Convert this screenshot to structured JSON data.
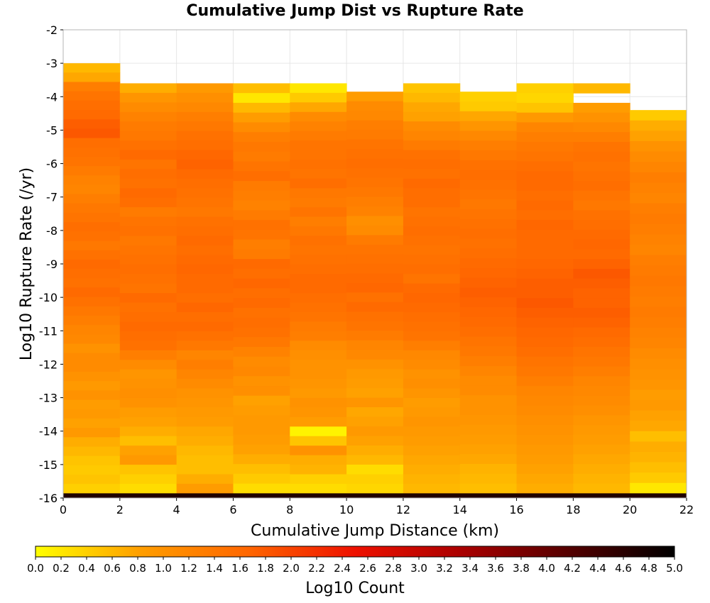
{
  "chart_data": {
    "type": "heatmap",
    "title": "Cumulative Jump Dist vs Rupture Rate",
    "xlabel": "Cumulative Jump Distance (km)",
    "ylabel": "Log10 Rupture Rate (/yr)",
    "colorbar_label": "Log10 Count",
    "xlim": [
      0,
      22
    ],
    "ylim": [
      -16,
      -2
    ],
    "x_ticks": [
      0,
      2,
      4,
      6,
      8,
      10,
      12,
      14,
      16,
      18,
      20,
      22
    ],
    "y_ticks": [
      -2,
      -3,
      -4,
      -5,
      -6,
      -7,
      -8,
      -9,
      -10,
      -11,
      -12,
      -13,
      -14,
      -15,
      -16
    ],
    "colorbar_ticks": [
      "0.0",
      "0.2",
      "0.4",
      "0.6",
      "0.8",
      "1.0",
      "1.2",
      "1.4",
      "1.6",
      "1.8",
      "2.0",
      "2.2",
      "2.4",
      "2.6",
      "2.8",
      "3.0",
      "3.2",
      "3.4",
      "3.6",
      "3.8",
      "4.0",
      "4.2",
      "4.4",
      "4.6",
      "4.8",
      "5.0"
    ],
    "colorbar_range": [
      0,
      5
    ],
    "colormap": [
      "#ffff00",
      "#ff9d00",
      "#ff6600",
      "#ee1100",
      "#aa0000",
      "#550000",
      "#000000"
    ],
    "grid": true,
    "x_bin_edges": [
      0,
      2,
      4,
      6,
      8,
      10,
      12,
      14,
      16,
      18,
      20,
      22
    ],
    "y_bin_edges_start": -16,
    "y_bin_size": 0.2857,
    "columns": [
      {
        "x_start": 0,
        "x_end": 2,
        "y_top": -3.0,
        "values_from_top": [
          0.6,
          0.75,
          1.3,
          1.45,
          1.55,
          1.6,
          1.75,
          1.8,
          1.55,
          1.5,
          1.45,
          1.35,
          1.25,
          1.2,
          1.3,
          1.4,
          1.45,
          1.55,
          1.5,
          1.4,
          1.5,
          1.6,
          1.55,
          1.5,
          1.6,
          1.5,
          1.4,
          1.3,
          1.2,
          1.15,
          1.0,
          1.1,
          1.1,
          1.0,
          0.9,
          1.0,
          0.85,
          0.9,
          0.8,
          0.9,
          0.7,
          0.6,
          0.5,
          0.45,
          0.5,
          0.4
        ]
      },
      {
        "x_start": 2,
        "x_end": 4,
        "y_top": -3.6,
        "values_from_top": [
          0.7,
          0.95,
          1.1,
          1.25,
          1.35,
          1.4,
          1.5,
          1.6,
          1.45,
          1.55,
          1.5,
          1.6,
          1.55,
          1.35,
          1.45,
          1.5,
          1.4,
          1.45,
          1.5,
          1.55,
          1.5,
          1.45,
          1.6,
          1.5,
          1.55,
          1.6,
          1.55,
          1.5,
          1.3,
          1.1,
          0.95,
          1.0,
          1.05,
          1.0,
          0.85,
          0.8,
          0.7,
          0.55,
          0.8,
          0.9,
          0.5,
          0.4,
          0.3
        ]
      },
      {
        "x_start": 4,
        "x_end": 6,
        "y_top": -3.6,
        "values_from_top": [
          0.9,
          1.05,
          1.15,
          1.3,
          1.4,
          1.5,
          1.55,
          1.65,
          1.7,
          1.6,
          1.55,
          1.5,
          1.45,
          1.4,
          1.5,
          1.55,
          1.6,
          1.55,
          1.6,
          1.65,
          1.6,
          1.6,
          1.55,
          1.65,
          1.55,
          1.6,
          1.5,
          1.4,
          1.2,
          1.3,
          1.2,
          1.1,
          1.0,
          0.95,
          0.9,
          0.85,
          0.75,
          0.7,
          0.6,
          0.55,
          0.55,
          0.7,
          0.85
        ]
      },
      {
        "x_start": 6,
        "x_end": 8,
        "y_top": -3.6,
        "values_from_top": [
          0.55,
          0.2,
          0.6,
          0.85,
          1.1,
          1.3,
          1.4,
          1.35,
          1.45,
          1.55,
          1.35,
          1.3,
          1.25,
          1.35,
          1.5,
          1.45,
          1.3,
          1.35,
          1.6,
          1.55,
          1.65,
          1.55,
          1.6,
          1.5,
          1.55,
          1.5,
          1.4,
          1.25,
          1.1,
          1.15,
          1.0,
          1.05,
          0.8,
          0.85,
          0.9,
          0.9,
          0.85,
          0.8,
          0.7,
          0.55,
          0.45,
          0.3
        ]
      },
      {
        "x_start": 8,
        "x_end": 10,
        "y_top": -3.6,
        "values_from_top": [
          0.2,
          0.45,
          0.75,
          1.1,
          1.25,
          1.35,
          1.45,
          1.45,
          1.5,
          1.45,
          1.55,
          1.4,
          1.35,
          1.45,
          1.3,
          1.4,
          1.5,
          1.45,
          1.5,
          1.55,
          1.6,
          1.6,
          1.55,
          1.5,
          1.45,
          1.35,
          1.3,
          1.1,
          1.05,
          1.0,
          1.0,
          0.95,
          0.9,
          1.0,
          0.95,
          0.85,
          0.1,
          0.5,
          1.0,
          0.7,
          0.65,
          0.4,
          0.3
        ]
      },
      {
        "x_start": 10,
        "x_end": 12,
        "y_top": -3.85,
        "values_from_top": [
          0.85,
          1.1,
          1.15,
          1.3,
          1.35,
          1.45,
          1.5,
          1.55,
          1.5,
          1.45,
          1.4,
          1.3,
          1.25,
          1.05,
          1.1,
          1.35,
          1.45,
          1.5,
          1.55,
          1.6,
          1.65,
          1.5,
          1.6,
          1.5,
          1.45,
          1.35,
          1.2,
          1.15,
          1.0,
          0.9,
          0.85,
          0.8,
          0.95,
          0.75,
          0.8,
          0.9,
          0.8,
          0.7,
          0.6,
          0.3,
          0.4,
          0.35
        ]
      },
      {
        "x_start": 12,
        "x_end": 14,
        "y_top": -3.6,
        "values_from_top": [
          0.5,
          0.6,
          0.75,
          0.8,
          1.1,
          1.2,
          1.35,
          1.5,
          1.55,
          1.5,
          1.6,
          1.55,
          1.55,
          1.45,
          1.5,
          1.55,
          1.5,
          1.45,
          1.5,
          1.55,
          1.45,
          1.6,
          1.65,
          1.6,
          1.55,
          1.5,
          1.45,
          1.3,
          1.15,
          1.1,
          1.0,
          1.05,
          0.95,
          0.85,
          0.9,
          0.95,
          0.9,
          0.85,
          0.8,
          0.75,
          0.7,
          0.65,
          0.6
        ]
      },
      {
        "x_start": 14,
        "x_end": 16,
        "y_top": -3.85,
        "values_from_top": [
          0.4,
          0.45,
          0.75,
          0.95,
          1.15,
          1.3,
          1.4,
          1.5,
          1.55,
          1.5,
          1.45,
          1.4,
          1.45,
          1.5,
          1.55,
          1.5,
          1.55,
          1.6,
          1.65,
          1.7,
          1.75,
          1.7,
          1.65,
          1.6,
          1.55,
          1.45,
          1.4,
          1.3,
          1.2,
          1.1,
          1.1,
          1.0,
          1.0,
          0.95,
          0.9,
          0.85,
          0.8,
          0.75,
          0.65,
          0.6,
          0.55
        ]
      },
      {
        "x_start": 16,
        "x_end": 18,
        "y_top": -3.6,
        "values_from_top": [
          0.4,
          0.35,
          0.5,
          0.9,
          1.2,
          1.3,
          1.4,
          1.45,
          1.55,
          1.6,
          1.6,
          1.55,
          1.6,
          1.55,
          1.65,
          1.6,
          1.6,
          1.6,
          1.65,
          1.7,
          1.75,
          1.75,
          1.8,
          1.75,
          1.7,
          1.65,
          1.6,
          1.55,
          1.45,
          1.4,
          1.3,
          1.2,
          1.15,
          1.1,
          1.05,
          1.0,
          0.95,
          0.9,
          0.85,
          0.8,
          0.75,
          0.7
        ]
      },
      {
        "x_start": 18,
        "x_end": 20,
        "y_top": -3.6,
        "values_from_top": [
          0.6,
          null,
          0.85,
          1.0,
          1.15,
          1.3,
          1.45,
          1.5,
          1.45,
          1.5,
          1.55,
          1.45,
          1.4,
          1.5,
          1.55,
          1.6,
          1.65,
          1.6,
          1.7,
          1.8,
          1.75,
          1.7,
          1.7,
          1.75,
          1.7,
          1.6,
          1.55,
          1.45,
          1.4,
          1.3,
          1.2,
          1.15,
          1.1,
          1.05,
          0.95,
          0.9,
          0.85,
          0.8,
          0.75,
          0.7,
          0.65,
          0.6
        ]
      },
      {
        "x_start": 20,
        "x_end": 22,
        "y_top": -4.4,
        "values_from_top": [
          0.45,
          0.7,
          0.8,
          1.0,
          1.1,
          1.2,
          1.3,
          1.25,
          1.2,
          1.3,
          1.35,
          1.3,
          1.25,
          1.2,
          1.3,
          1.35,
          1.4,
          1.35,
          1.3,
          1.35,
          1.3,
          1.25,
          1.2,
          1.1,
          1.05,
          1.0,
          0.95,
          0.85,
          0.9,
          0.8,
          0.75,
          0.55,
          0.7,
          0.65,
          0.55,
          0.45,
          0.2
        ]
      }
    ],
    "bottom_row": {
      "y_start": -16.0,
      "y_end": -15.86,
      "value": 4.7,
      "x_range": [
        0,
        22
      ]
    }
  }
}
